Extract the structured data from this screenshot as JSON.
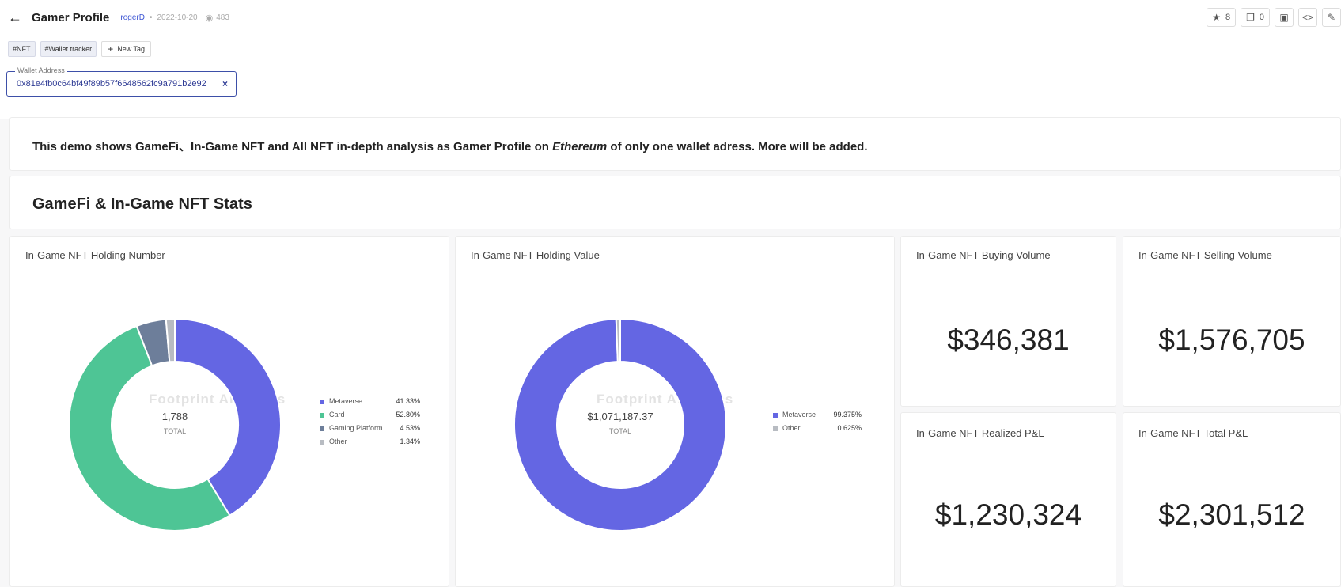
{
  "header": {
    "title": "Gamer Profile",
    "author": "rogerD",
    "separator": "•",
    "date": "2022-10-20",
    "views": "483",
    "back_icon": "arrow-left-icon"
  },
  "toolbar": {
    "star_count": "8",
    "fork_count": "0"
  },
  "tags": [
    "#NFT",
    "#Wallet tracker"
  ],
  "new_tag_label": "New Tag",
  "wallet": {
    "label": "Wallet Address",
    "value": "0x81e4fb0c64bf49f89b57f6648562fc9a791b2e92",
    "clear": "×"
  },
  "description": {
    "prefix": "This demo shows GameFi、In-Game NFT and All NFT in-depth analysis as Gamer Profile on ",
    "chain": "Ethereum",
    "suffix": " of only one wallet adress. More will be added."
  },
  "section_title": "GameFi & In-Game NFT Stats",
  "watermark": "Footprint Analytics",
  "chart_data": [
    {
      "type": "pie",
      "title": "In-Game NFT Holding Number",
      "center_value": "1,788",
      "center_label": "TOTAL",
      "categories": [
        "Metaverse",
        "Card",
        "Gaming Platform",
        "Other"
      ],
      "values": [
        41.33,
        52.8,
        4.53,
        1.34
      ],
      "labels": [
        "41.33%",
        "52.80%",
        "4.53%",
        "1.34%"
      ],
      "colors": [
        "#6466e3",
        "#4ec595",
        "#6d7e9a",
        "#b8bcc2"
      ],
      "legend": "right"
    },
    {
      "type": "pie",
      "title": "In-Game NFT Holding Value",
      "center_value": "$1,071,187.37",
      "center_label": "TOTAL",
      "categories": [
        "Metaverse",
        "Other"
      ],
      "values": [
        99.375,
        0.625
      ],
      "labels": [
        "99.375%",
        "0.625%"
      ],
      "colors": [
        "#6466e3",
        "#b8bcc2"
      ],
      "legend": "right"
    }
  ],
  "stats": [
    {
      "title": "In-Game NFT Buying Volume",
      "value": "$346,381"
    },
    {
      "title": "In-Game NFT Selling Volume",
      "value": "$1,576,705"
    },
    {
      "title": "In-Game NFT Realized P&L",
      "value": "$1,230,324"
    },
    {
      "title": "In-Game NFT Total P&L",
      "value": "$2,301,512"
    }
  ]
}
